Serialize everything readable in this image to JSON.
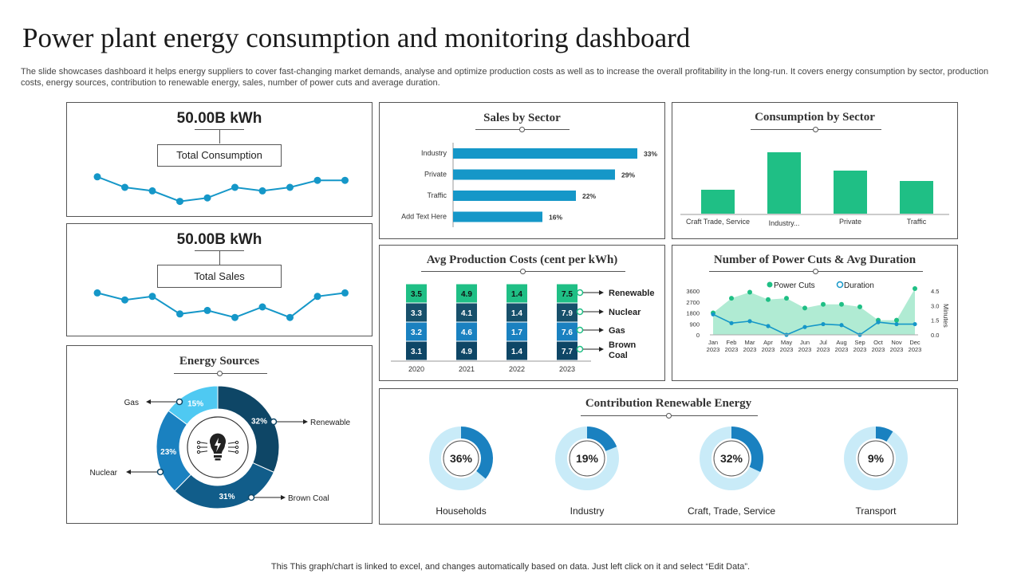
{
  "page": {
    "title": "Power plant energy consumption and monitoring dashboard",
    "subtitle": "The slide showcases dashboard it helps energy suppliers to cover fast-changing market demands, analyse and optimize production costs as well as to increase the overall profitability in the long-run. It covers energy consumption by sector, production costs, energy sources, contribution to renewable energy, sales, number of power cuts and average duration.",
    "footer": "This This graph/chart is linked to excel,  and changes automatically based on data. Just left click on it and select “Edit Data”."
  },
  "colors": {
    "teal": "#1597c8",
    "green": "#1fbf85",
    "light_green": "#8fe3c1",
    "dark_teal": "#17506b",
    "blue": "#1a81c0",
    "light_blue": "#c9ebf8",
    "navy": "#0e4666",
    "sky": "#4fc9f2"
  },
  "chart_data": [
    {
      "id": "total_consumption",
      "type": "line",
      "value_label": "50.00B kWh",
      "label": "Total Consumption",
      "values": [
        8,
        5,
        4,
        1,
        2,
        5,
        4,
        5,
        7,
        7
      ]
    },
    {
      "id": "total_sales",
      "type": "line",
      "value_label": "50.00B kWh",
      "label": "Total Sales",
      "values": [
        9,
        7,
        8,
        3,
        4,
        2,
        5,
        2,
        8,
        9
      ]
    },
    {
      "id": "sales_by_sector",
      "type": "bar",
      "title": "Sales by Sector",
      "categories": [
        "Industry",
        "Private",
        "Traffic",
        "Add Text Here"
      ],
      "values": [
        33,
        29,
        22,
        16
      ],
      "labels": [
        "33%",
        "29%",
        "22%",
        "16%"
      ],
      "xlim": [
        0,
        40
      ]
    },
    {
      "id": "consumption_by_sector",
      "type": "bar",
      "title": "Consumption  by Sector",
      "categories": [
        "Craft Trade, Service",
        "Industry...",
        "Private",
        "Traffic"
      ],
      "values": [
        30,
        77,
        54,
        41
      ],
      "ylim": [
        0,
        80
      ]
    },
    {
      "id": "avg_production_costs",
      "type": "bar",
      "title": "Avg Production  Costs (cent per kWh)",
      "categories": [
        "2020",
        "2021",
        "2022",
        "2023"
      ],
      "series": [
        {
          "name": "Brown Coal",
          "values": [
            "3.1",
            "4.9",
            "1.4",
            "7.7"
          ]
        },
        {
          "name": "Gas",
          "values": [
            "3.2",
            "4.6",
            "1.7",
            "7.6"
          ]
        },
        {
          "name": "Nuclear",
          "values": [
            "3.3",
            "4.1",
            "1.4",
            "7.9"
          ]
        },
        {
          "name": "Renewable",
          "values": [
            "3.5",
            "4.9",
            "1.4",
            "7.5"
          ]
        }
      ]
    },
    {
      "id": "power_cuts",
      "type": "area",
      "title": "Number  of Power Cuts & Avg Duration",
      "legend": [
        "Power Cuts",
        "Duration"
      ],
      "y_right_label": "Minutes",
      "y_left_ticks": [
        "3600",
        "2700",
        "1800",
        "900",
        "0"
      ],
      "y_right_ticks": [
        "4.5",
        "3.0",
        "1.5",
        "0.0"
      ],
      "months": [
        "Jan",
        "Feb",
        "Mar",
        "Apr",
        "May",
        "Jun",
        "Jul",
        "Aug",
        "Sep",
        "Oct",
        "Nov",
        "Dec"
      ],
      "year": "2023",
      "series": [
        {
          "name": "Power Cuts",
          "values": [
            1800,
            3000,
            3500,
            2900,
            3000,
            2200,
            2500,
            2500,
            2300,
            1200,
            1200,
            3800
          ]
        },
        {
          "name": "Duration",
          "values": [
            2.1,
            1.2,
            1.4,
            0.9,
            0.0,
            0.8,
            1.1,
            1.0,
            0.0,
            1.3,
            1.1,
            1.1
          ]
        }
      ]
    },
    {
      "id": "energy_sources",
      "type": "pie",
      "title": "Energy Sources",
      "categories": [
        "Renewable",
        "Brown Coal",
        "Nuclear",
        "Gas"
      ],
      "values": [
        32,
        31,
        23,
        15
      ],
      "labels": [
        "32%",
        "31%",
        "23%",
        "15%"
      ]
    },
    {
      "id": "renewable_contribution",
      "type": "pie",
      "title": "Contribution  Renewable Energy",
      "categories": [
        "Households",
        "Industry",
        "Craft, Trade, Service",
        "Transport"
      ],
      "values": [
        36,
        19,
        32,
        9
      ],
      "labels": [
        "36%",
        "19%",
        "32%",
        "9%"
      ]
    }
  ]
}
